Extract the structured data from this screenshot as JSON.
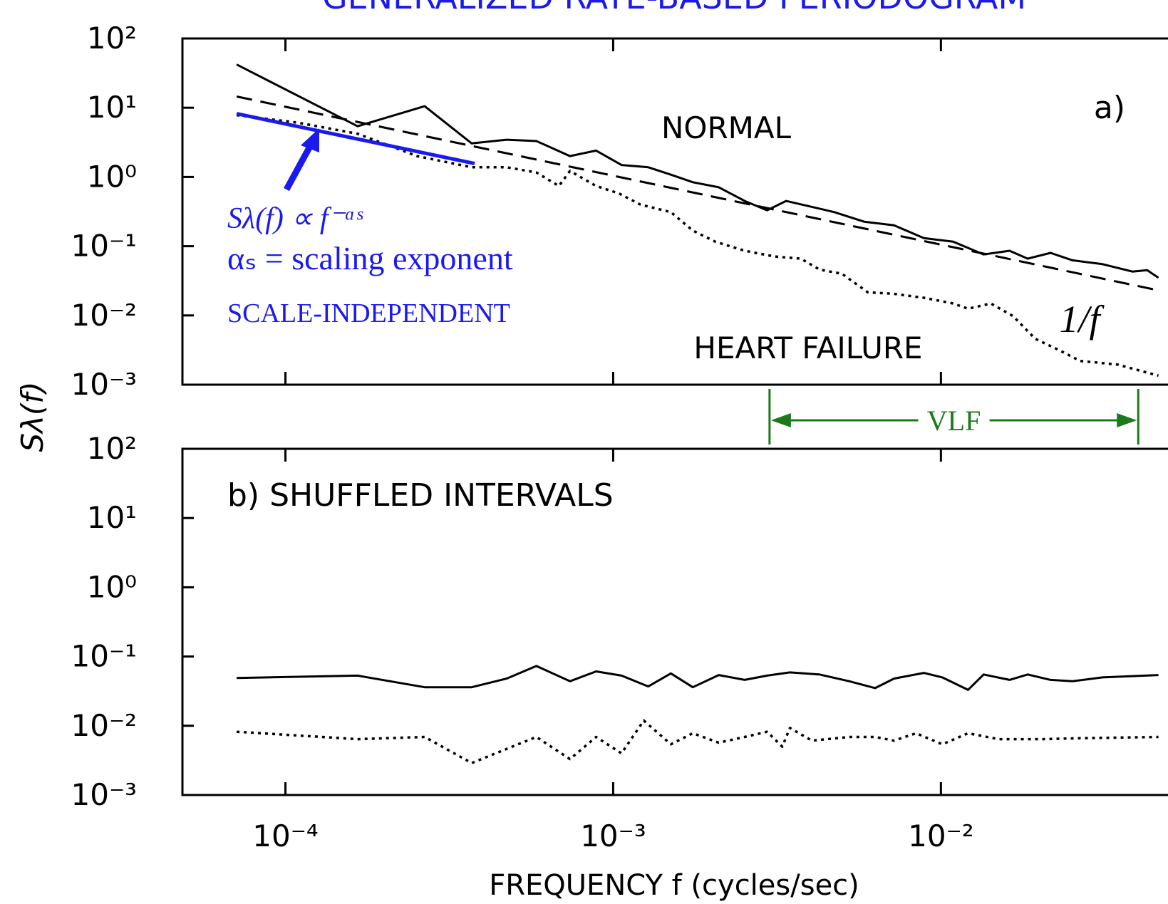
{
  "header": {
    "title": "GENERALIZED RATE-BASED PERIODOGRAM"
  },
  "axes": {
    "y_label": "Sλ(f)",
    "x_label": "FREQUENCY f  (cycles/sec)"
  },
  "annotations": {
    "panel_a": "a)",
    "normal": "NORMAL",
    "heart_failure": "HEART FAILURE",
    "one_over_f": "1/f",
    "formula": "Sλ(f) ∝ f⁻ᵅˢ",
    "exponent": "αₛ = scaling exponent",
    "scale_independent": "SCALE-INDEPENDENT",
    "vlf": {
      "label": "VLF",
      "range": [
        0.003,
        0.04
      ],
      "color": "#1a7a1a"
    }
  },
  "chart_data": [
    {
      "type": "line",
      "log_x": true,
      "log_y": true,
      "xlim": [
        4.85e-05,
        0.0493
      ],
      "ylim": [
        0.001,
        100
      ],
      "xticks": [
        {
          "value": 0.0001,
          "label": "10⁻⁴"
        },
        {
          "value": 0.001,
          "label": "10⁻³"
        },
        {
          "value": 0.01,
          "label": "10⁻²"
        }
      ],
      "yticks": [
        {
          "value": 0.001,
          "label": "10⁻³"
        },
        {
          "value": 0.01,
          "label": "10⁻²"
        },
        {
          "value": 0.1,
          "label": "10⁻¹"
        },
        {
          "value": 1,
          "label": "10⁰"
        },
        {
          "value": 10,
          "label": "10¹"
        },
        {
          "value": 100,
          "label": "10²"
        }
      ],
      "series": [
        {
          "name": "NORMAL",
          "color": "#000000",
          "style": "solid",
          "x": [
            7.1e-05,
            0.000166,
            0.000266,
            0.00037,
            0.000473,
            0.000583,
            0.000738,
            0.000887,
            0.00106,
            0.00128,
            0.0015,
            0.00175,
            0.0021,
            0.00252,
            0.00295,
            0.00337,
            0.00404,
            0.00473,
            0.00583,
            0.00719,
            0.00887,
            0.0109,
            0.0135,
            0.0162,
            0.0184,
            0.0216,
            0.0252,
            0.0311,
            0.0384,
            0.0426,
            0.0461
          ],
          "values": [
            42,
            5.4,
            10.5,
            3.05,
            3.45,
            3.3,
            2.0,
            2.4,
            1.49,
            1.38,
            1.08,
            0.84,
            0.71,
            0.45,
            0.33,
            0.45,
            0.37,
            0.31,
            0.226,
            0.2,
            0.131,
            0.116,
            0.076,
            0.086,
            0.066,
            0.08,
            0.0625,
            0.055,
            0.043,
            0.045,
            0.035
          ]
        },
        {
          "name": "HEART FAILURE",
          "color": "#000000",
          "style": "dotted",
          "x": [
            7.1e-05,
            0.000109,
            0.000166,
            0.000252,
            0.00037,
            0.000473,
            0.000583,
            0.000683,
            0.000738,
            0.000887,
            0.00104,
            0.00121,
            0.0015,
            0.00175,
            0.00205,
            0.00252,
            0.00311,
            0.00374,
            0.00426,
            0.00499,
            0.00598,
            0.00719,
            0.00887,
            0.0109,
            0.0121,
            0.0142,
            0.0166,
            0.0194,
            0.0228,
            0.0266,
            0.0346,
            0.0461
          ],
          "values": [
            7.8,
            6.1,
            4.2,
            2.0,
            1.38,
            1.38,
            1.16,
            0.74,
            1.22,
            0.74,
            0.58,
            0.4,
            0.31,
            0.168,
            0.116,
            0.086,
            0.071,
            0.066,
            0.046,
            0.04,
            0.0216,
            0.0205,
            0.018,
            0.0149,
            0.0125,
            0.0149,
            0.0098,
            0.0046,
            0.0032,
            0.0022,
            0.00195,
            0.00135
          ]
        },
        {
          "name": "1/f",
          "color": "#000000",
          "style": "dashed",
          "x": [
            7.1e-05,
            0.0461
          ],
          "values": [
            14.5,
            0.023
          ]
        },
        {
          "color": "#1a1aee",
          "style": "fit",
          "x": [
            7.1e-05,
            0.000378
          ],
          "values": [
            8.2,
            1.56
          ]
        }
      ]
    },
    {
      "type": "line",
      "log_x": true,
      "log_y": true,
      "title": "b)  SHUFFLED INTERVALS",
      "xlim": [
        4.85e-05,
        0.0493
      ],
      "ylim": [
        0.001,
        100
      ],
      "xticks": [
        {
          "value": 0.0001,
          "label": "10⁻⁴"
        },
        {
          "value": 0.001,
          "label": "10⁻³"
        },
        {
          "value": 0.01,
          "label": "10⁻²"
        }
      ],
      "yticks": [
        {
          "value": 0.001,
          "label": "10⁻³"
        },
        {
          "value": 0.01,
          "label": "10⁻²"
        },
        {
          "value": 0.1,
          "label": "10⁻¹"
        },
        {
          "value": 1,
          "label": "10⁰"
        },
        {
          "value": 10,
          "label": "10¹"
        },
        {
          "value": 100,
          "label": "10²"
        }
      ],
      "series": [
        {
          "color": "#000000",
          "style": "solid",
          "x": [
            7.1e-05,
            0.000166,
            0.000266,
            0.00037,
            0.000473,
            0.000583,
            0.000738,
            0.000887,
            0.00106,
            0.00128,
            0.0015,
            0.00175,
            0.0021,
            0.00252,
            0.00295,
            0.00346,
            0.00426,
            0.00525,
            0.0063,
            0.00719,
            0.00887,
            0.0101,
            0.0121,
            0.0135,
            0.0162,
            0.0184,
            0.0216,
            0.0252,
            0.0311,
            0.0461
          ],
          "values": [
            0.049,
            0.053,
            0.036,
            0.036,
            0.048,
            0.073,
            0.044,
            0.061,
            0.053,
            0.037,
            0.057,
            0.036,
            0.054,
            0.046,
            0.053,
            0.059,
            0.055,
            0.044,
            0.035,
            0.048,
            0.058,
            0.05,
            0.033,
            0.055,
            0.046,
            0.055,
            0.046,
            0.044,
            0.05,
            0.054
          ]
        },
        {
          "color": "#000000",
          "style": "dotted",
          "x": [
            7.1e-05,
            0.000166,
            0.000266,
            0.00037,
            0.000583,
            0.000738,
            0.000887,
            0.00106,
            0.00124,
            0.0015,
            0.00175,
            0.0021,
            0.00252,
            0.00295,
            0.00328,
            0.00346,
            0.00404,
            0.00525,
            0.0063,
            0.00719,
            0.0084,
            0.0101,
            0.0121,
            0.015,
            0.0205,
            0.0266,
            0.0461
          ],
          "values": [
            0.0082,
            0.0064,
            0.0069,
            0.0029,
            0.0069,
            0.0033,
            0.0069,
            0.004,
            0.0119,
            0.0054,
            0.0078,
            0.0057,
            0.0069,
            0.0082,
            0.005,
            0.0093,
            0.0061,
            0.0069,
            0.0069,
            0.0061,
            0.0078,
            0.0054,
            0.0078,
            0.0064,
            0.0064,
            0.0066,
            0.0069
          ]
        }
      ]
    }
  ]
}
